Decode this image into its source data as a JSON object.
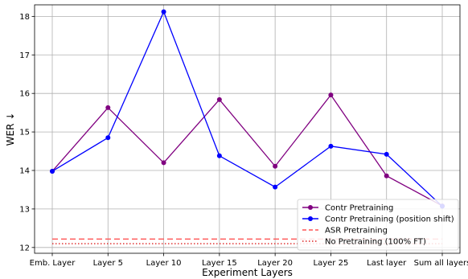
{
  "chart_data": {
    "type": "line",
    "xlabel": "Experiment Layers",
    "ylabel": "WER ↓",
    "categories": [
      "Emb. Layer",
      "Layer 5",
      "Layer 10",
      "Layer 15",
      "Layer 20",
      "Layer 25",
      "Last layer",
      "Sum all layers"
    ],
    "ylim": [
      11.85,
      18.3
    ],
    "yticks": [
      12,
      13,
      14,
      15,
      16,
      17,
      18
    ],
    "grid": true,
    "legend_position": "bottom-right",
    "series": [
      {
        "name": "Contr Pretraining",
        "color": "#800080",
        "style": "solid-marker",
        "values": [
          13.98,
          15.63,
          14.2,
          15.84,
          14.11,
          15.96,
          13.86,
          13.08
        ]
      },
      {
        "name": "Contr Pretraining (position shift)",
        "color": "#0000ff",
        "style": "solid-marker",
        "values": [
          13.98,
          14.85,
          18.12,
          14.38,
          13.57,
          14.63,
          14.42,
          13.07
        ]
      }
    ],
    "reference_lines": [
      {
        "name": "ASR Pretraining",
        "color": "#ff5555",
        "style": "dashed",
        "value": 12.22
      },
      {
        "name": "No Pretraining (100% FT)",
        "color": "#dd2222",
        "style": "dotted",
        "value": 12.1
      }
    ]
  }
}
